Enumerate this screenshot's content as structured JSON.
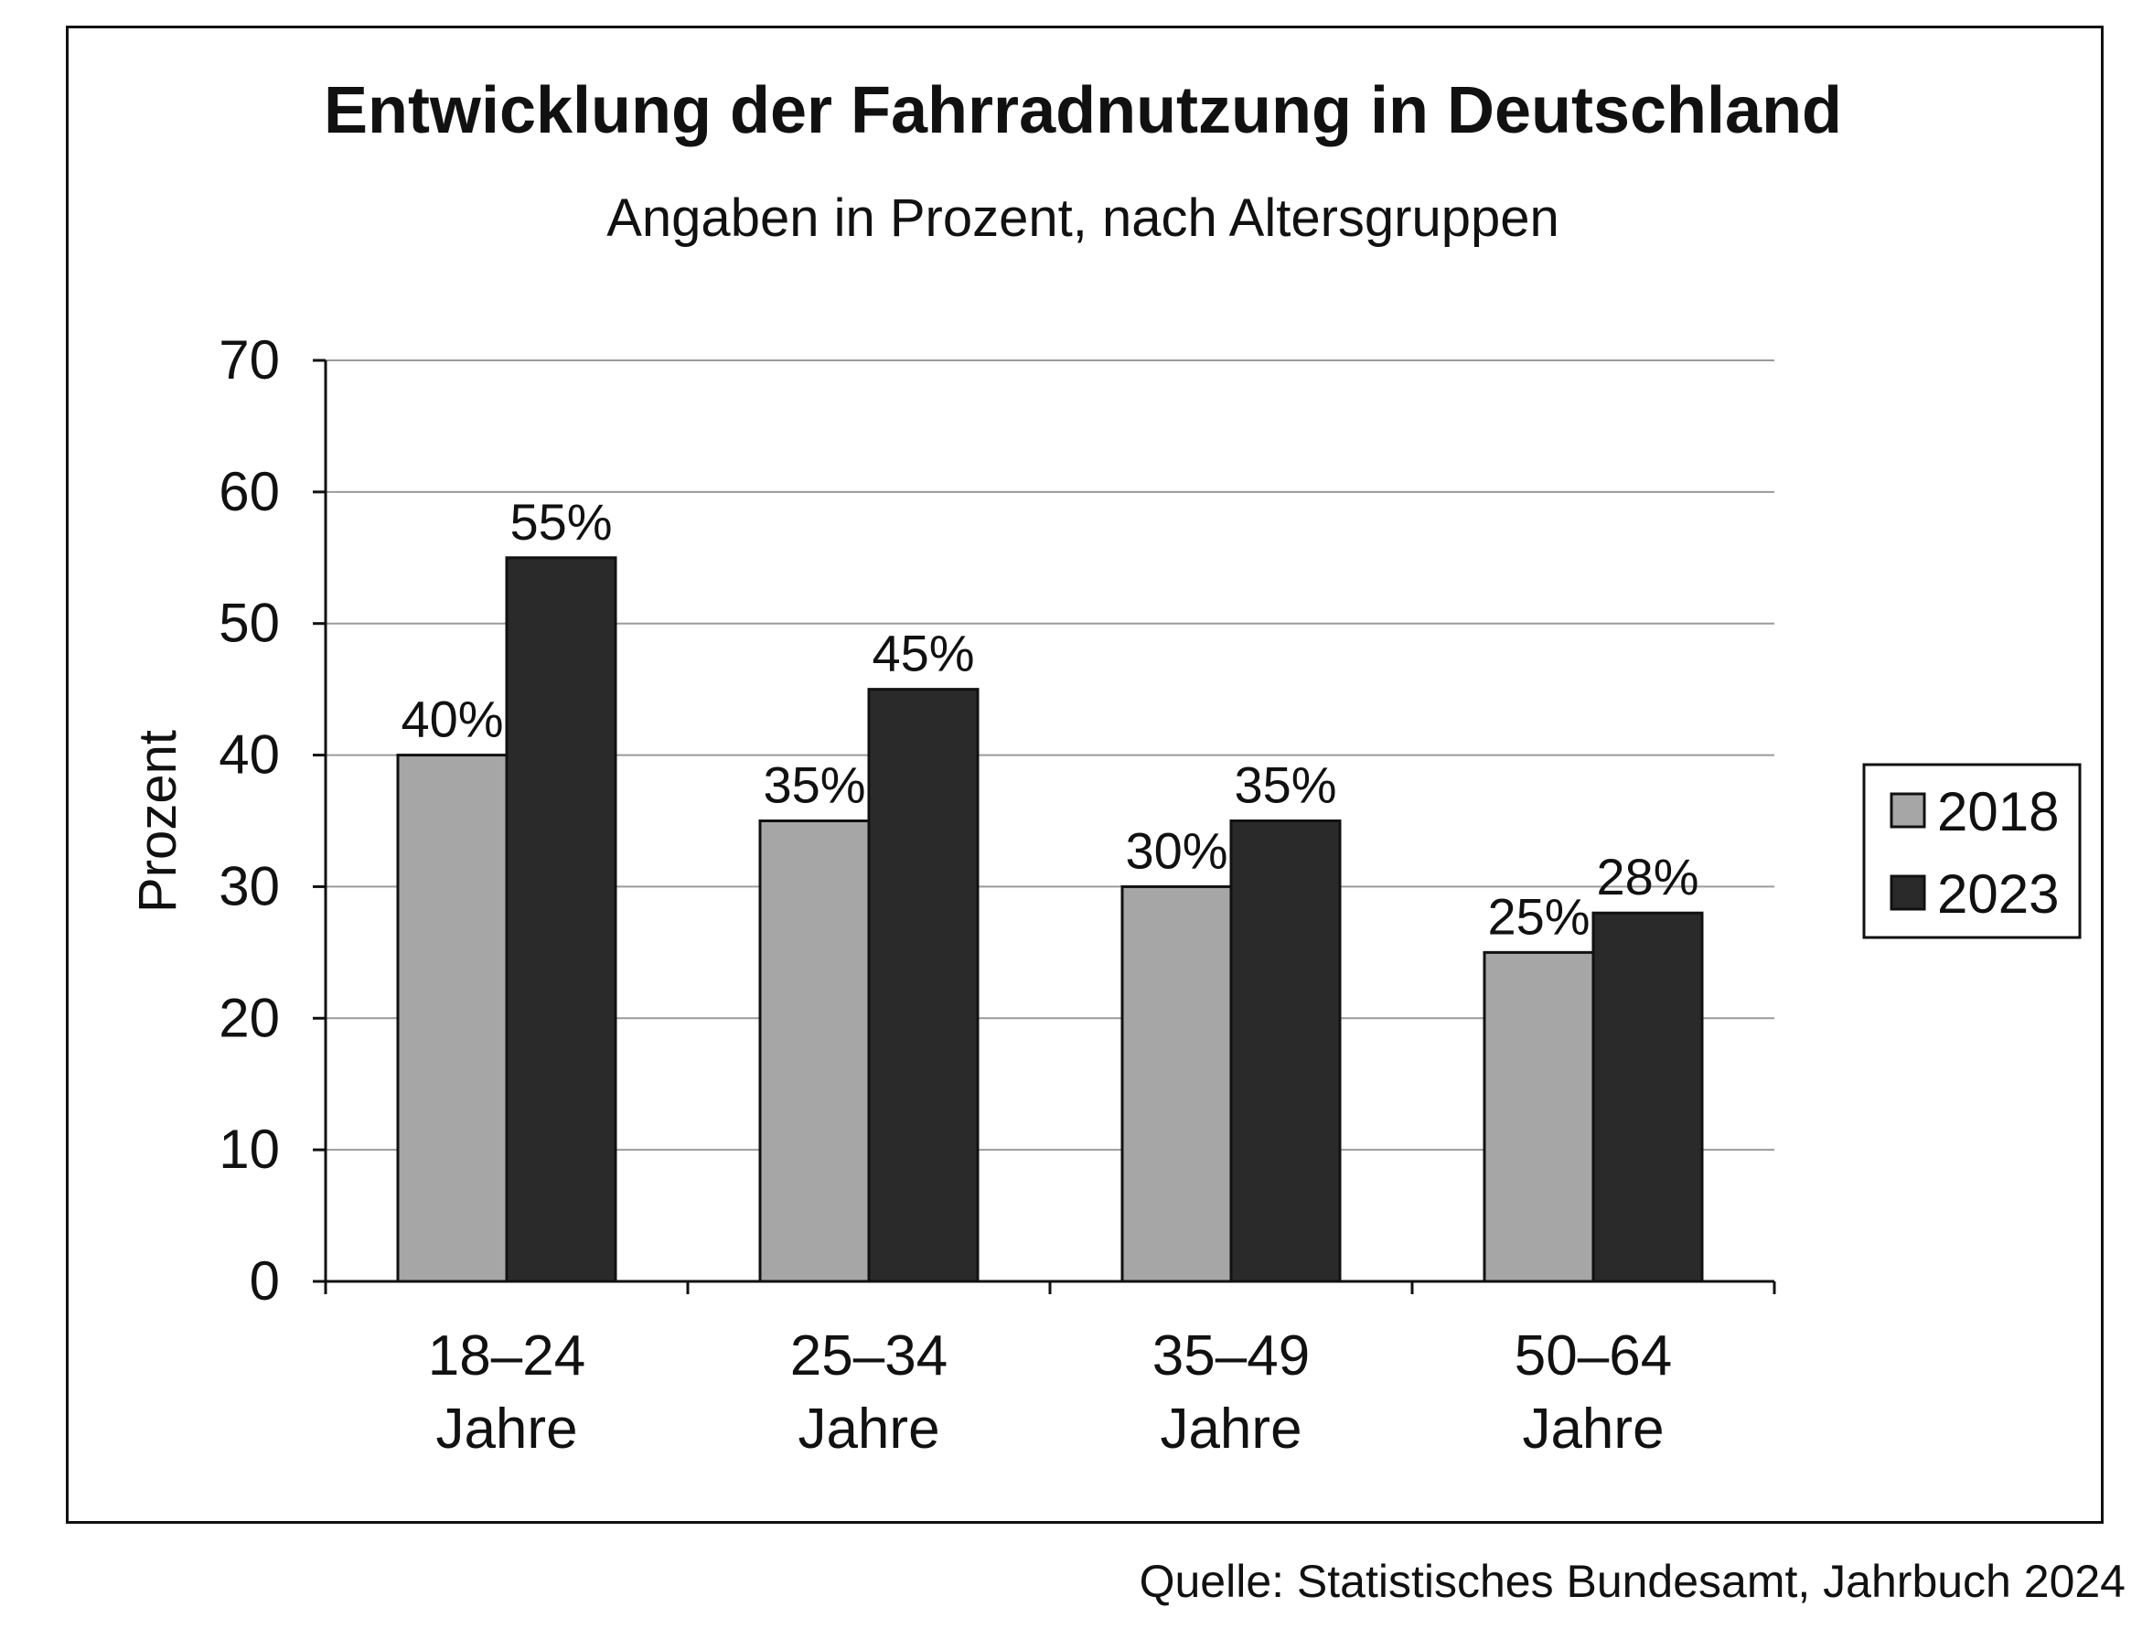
{
  "chart_data": {
    "type": "bar",
    "title": "Entwicklung der Fahrradnutzung in Deutschland",
    "subtitle": "Angaben in Prozent, nach Altersgruppen",
    "ylabel": "Prozent",
    "xlabel": "",
    "ylim": [
      0,
      70
    ],
    "yticks": [
      0,
      10,
      20,
      30,
      40,
      50,
      60,
      70
    ],
    "grid": true,
    "legend_position": "right",
    "categories": [
      [
        "18–24",
        "Jahre"
      ],
      [
        "25–34",
        "Jahre"
      ],
      [
        "35–49",
        "Jahre"
      ],
      [
        "50–64",
        "Jahre"
      ]
    ],
    "series": [
      {
        "name": "2018",
        "color": "#a6a6a6",
        "values": [
          40,
          35,
          30,
          25
        ],
        "labels": [
          "40%",
          "35%",
          "30%",
          "25%"
        ]
      },
      {
        "name": "2023",
        "color": "#2a2a2a",
        "values": [
          55,
          45,
          35,
          28
        ],
        "labels": [
          "55%",
          "45%",
          "35%",
          "28%"
        ]
      }
    ]
  },
  "source": "Quelle: Statistisches Bundesamt, Jahrbuch 2024"
}
